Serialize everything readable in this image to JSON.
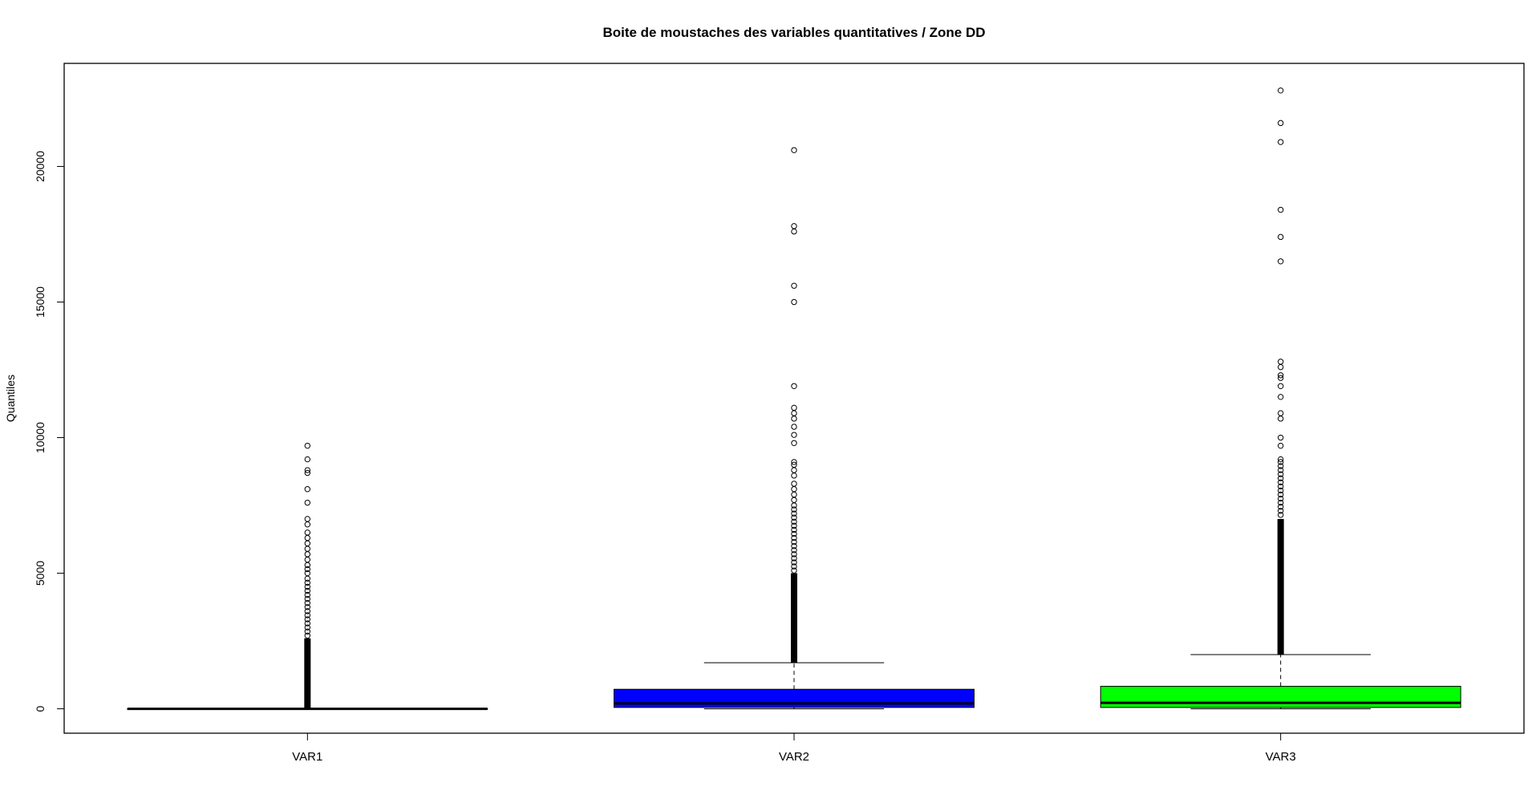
{
  "chart_data": {
    "type": "boxplot",
    "title": "Boite de moustaches des variables quantitatives / Zone DD",
    "xlabel": "",
    "ylabel": "Quantiles",
    "ylim": [
      -900,
      23800
    ],
    "yticks": [
      0,
      5000,
      10000,
      15000,
      20000
    ],
    "grid": false,
    "legend": "none",
    "categories": [
      "VAR1",
      "VAR2",
      "VAR3"
    ],
    "boxes": [
      {
        "name": "VAR1",
        "color": "#000000",
        "min": 0,
        "q1": 0,
        "median": 0,
        "q3": 0,
        "max": 0,
        "outlier_dense_range": [
          0,
          2600
        ],
        "outliers": [
          2700,
          2850,
          3000,
          3150,
          3300,
          3450,
          3600,
          3750,
          3900,
          4050,
          4200,
          4350,
          4500,
          4650,
          4800,
          5000,
          5150,
          5300,
          5500,
          5700,
          5900,
          6100,
          6300,
          6500,
          6800,
          7000,
          7600,
          8100,
          8700,
          8800,
          9200,
          9700
        ]
      },
      {
        "name": "VAR2",
        "color": "#0000ff",
        "min": 0,
        "q1": 50,
        "median": 200,
        "q3": 720,
        "max": 1700,
        "outlier_dense_range": [
          1700,
          5000
        ],
        "outliers": [
          5100,
          5250,
          5400,
          5550,
          5700,
          5850,
          6000,
          6150,
          6300,
          6450,
          6600,
          6750,
          6900,
          7050,
          7200,
          7350,
          7500,
          7700,
          7900,
          8100,
          8300,
          8600,
          8800,
          9000,
          9100,
          9800,
          10100,
          10400,
          10700,
          10900,
          11100,
          11900,
          15000,
          15600,
          17600,
          17800,
          20600
        ]
      },
      {
        "name": "VAR3",
        "color": "#00ff00",
        "min": 0,
        "q1": 50,
        "median": 220,
        "q3": 830,
        "max": 2000,
        "outlier_dense_range": [
          2000,
          7000
        ],
        "outliers": [
          7150,
          7300,
          7450,
          7600,
          7750,
          7900,
          8050,
          8200,
          8350,
          8500,
          8650,
          8800,
          8950,
          9100,
          9200,
          9700,
          10000,
          10700,
          10900,
          11500,
          11900,
          12200,
          12300,
          12600,
          12800,
          16500,
          17400,
          18400,
          20900,
          21600,
          22800
        ]
      }
    ]
  }
}
